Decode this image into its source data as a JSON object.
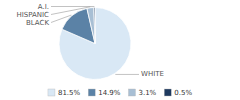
{
  "chart_data": {
    "type": "pie",
    "categories": [
      "WHITE",
      "BLACK",
      "HISPANIC",
      "A.I."
    ],
    "values": [
      81.5,
      14.9,
      3.1,
      0.5
    ],
    "value_labels": [
      "81.5%",
      "14.9%",
      "3.1%",
      "0.5%"
    ],
    "colors": [
      "#d9e8f5",
      "#5b82a6",
      "#a8bfd4",
      "#1e3a5f"
    ],
    "legend": "bottom"
  }
}
